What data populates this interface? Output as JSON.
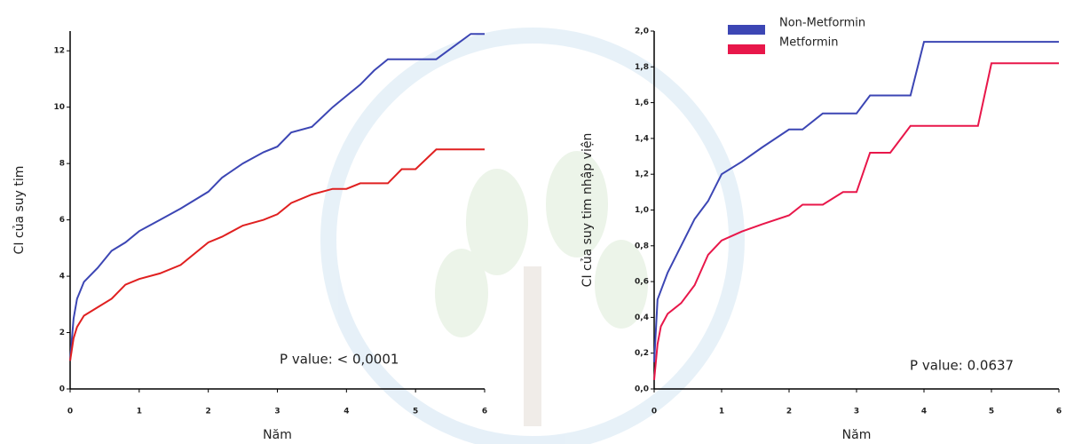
{
  "chart_data": [
    {
      "type": "line",
      "xlabel": "Năm",
      "ylabel": "CI của suy tim",
      "x": [
        0,
        0.05,
        0.1,
        0.2,
        0.4,
        0.6,
        0.8,
        1.0,
        1.3,
        1.6,
        2.0,
        2.2,
        2.5,
        2.8,
        3.0,
        3.2,
        3.5,
        3.8,
        4.0,
        4.2,
        4.4,
        4.6,
        4.8,
        5.0,
        5.3,
        5.8,
        6.0
      ],
      "series": [
        {
          "color": "#3c46b4",
          "values": [
            1.0,
            2.5,
            3.2,
            3.8,
            4.3,
            4.9,
            5.2,
            5.6,
            6.0,
            6.4,
            7.0,
            7.5,
            8.0,
            8.4,
            8.6,
            9.1,
            9.3,
            10.0,
            10.4,
            10.8,
            11.3,
            11.7,
            11.7,
            11.7,
            11.7,
            12.6,
            12.6
          ]
        },
        {
          "color": "#e02020",
          "values": [
            1.0,
            1.8,
            2.2,
            2.6,
            2.9,
            3.2,
            3.7,
            3.9,
            4.1,
            4.4,
            5.2,
            5.4,
            5.8,
            6.0,
            6.2,
            6.6,
            6.9,
            7.1,
            7.1,
            7.3,
            7.3,
            7.3,
            7.8,
            7.8,
            8.5,
            8.5,
            8.5
          ]
        }
      ],
      "xlim": [
        0,
        6
      ],
      "xticks": [
        0,
        1,
        2,
        3,
        4,
        5,
        6
      ],
      "ylim": [
        0,
        12.7
      ],
      "yticks": [
        0,
        2,
        4,
        6,
        8,
        10,
        12
      ],
      "annotation": "P value:  < 0,0001"
    },
    {
      "type": "line",
      "xlabel": "Năm",
      "ylabel": "CI của suy tim nhập viện",
      "x": [
        0,
        0.05,
        0.1,
        0.2,
        0.4,
        0.6,
        0.8,
        1.0,
        1.3,
        1.6,
        2.0,
        2.2,
        2.5,
        2.8,
        3.0,
        3.2,
        3.5,
        3.8,
        4.0,
        4.8,
        5.0,
        6.0
      ],
      "series": [
        {
          "name": "Non-Metformin",
          "color": "#3c46b4",
          "values": [
            0.15,
            0.5,
            0.55,
            0.65,
            0.8,
            0.95,
            1.05,
            1.2,
            1.27,
            1.35,
            1.45,
            1.45,
            1.54,
            1.54,
            1.54,
            1.64,
            1.64,
            1.64,
            1.94,
            1.94,
            1.94,
            1.94
          ]
        },
        {
          "name": "Metformin",
          "color": "#e8174a",
          "values": [
            0.05,
            0.25,
            0.35,
            0.42,
            0.48,
            0.58,
            0.75,
            0.83,
            0.88,
            0.92,
            0.97,
            1.03,
            1.03,
            1.1,
            1.1,
            1.32,
            1.32,
            1.47,
            1.47,
            1.47,
            1.82,
            1.82
          ]
        }
      ],
      "xlim": [
        0,
        6
      ],
      "xticks": [
        0,
        1,
        2,
        3,
        4,
        5,
        6
      ],
      "ylim": [
        0,
        2
      ],
      "yticks": [
        {
          "value": 0,
          "label": "0,0"
        },
        {
          "value": 0.2,
          "label": "0,2"
        },
        {
          "value": 0.4,
          "label": "0,4"
        },
        {
          "value": 0.6,
          "label": "0,6"
        },
        {
          "value": 0.8,
          "label": "0,8"
        },
        {
          "value": 1.0,
          "label": "1,0"
        },
        {
          "value": 1.2,
          "label": "1,2"
        },
        {
          "value": 1.4,
          "label": "1,4"
        },
        {
          "value": 1.6,
          "label": "1,6"
        },
        {
          "value": 1.8,
          "label": "1,8"
        },
        {
          "value": 2.0,
          "label": "2,0"
        }
      ],
      "legend": "top-left",
      "annotation": "P value: 0.0637"
    }
  ]
}
